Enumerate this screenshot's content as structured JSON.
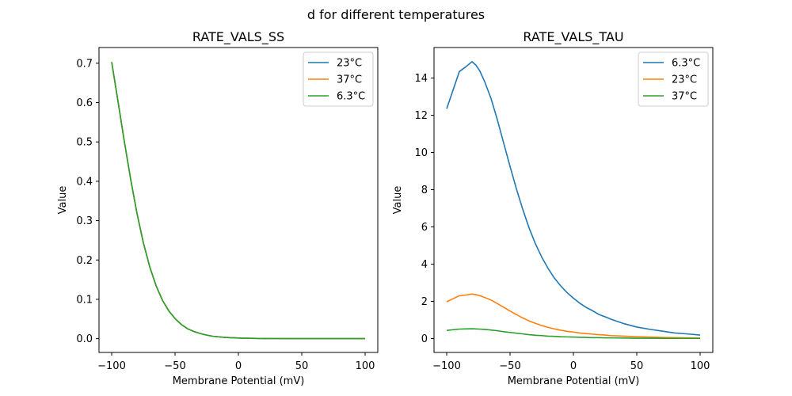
{
  "figure": {
    "suptitle": "d for different temperatures"
  },
  "chart_data": [
    {
      "type": "line",
      "title": "RATE_VALS_SS",
      "xlabel": "Membrane Potential (mV)",
      "ylabel": "Value",
      "xlim": [
        -110,
        110
      ],
      "ylim": [
        -0.035,
        0.74
      ],
      "xticks": [
        -100,
        -50,
        0,
        50,
        100
      ],
      "xtick_labels": [
        "−100",
        "−50",
        "0",
        "50",
        "100"
      ],
      "yticks": [
        0.0,
        0.1,
        0.2,
        0.3,
        0.4,
        0.5,
        0.6,
        0.7
      ],
      "ytick_labels": [
        "0.0",
        "0.1",
        "0.2",
        "0.3",
        "0.4",
        "0.5",
        "0.6",
        "0.7"
      ],
      "grid": false,
      "legend_position": "top-right",
      "x": [
        -100,
        -95,
        -90,
        -85,
        -80,
        -75,
        -70,
        -65,
        -60,
        -55,
        -50,
        -45,
        -40,
        -35,
        -30,
        -25,
        -20,
        -15,
        -10,
        -5,
        0,
        5,
        10,
        15,
        20,
        25,
        30,
        40,
        50,
        60,
        70,
        80,
        90,
        100
      ],
      "series": [
        {
          "name": "23°C",
          "color": "#1f77b4",
          "values": [
            0.703,
            0.603,
            0.501,
            0.405,
            0.318,
            0.244,
            0.183,
            0.135,
            0.098,
            0.071,
            0.051,
            0.036,
            0.025,
            0.018,
            0.013,
            0.009,
            0.006,
            0.0045,
            0.0032,
            0.0023,
            0.0016,
            0.0011,
            0.0008,
            0.0006,
            0.0004,
            0.0003,
            0.0002,
            0.0001,
            0.0001,
            0.0,
            0.0,
            0.0,
            0.0,
            0.0
          ]
        },
        {
          "name": "37°C",
          "color": "#ff7f0e",
          "values": [
            0.703,
            0.603,
            0.501,
            0.405,
            0.318,
            0.244,
            0.183,
            0.135,
            0.098,
            0.071,
            0.051,
            0.036,
            0.025,
            0.018,
            0.013,
            0.009,
            0.006,
            0.0045,
            0.0032,
            0.0023,
            0.0016,
            0.0011,
            0.0008,
            0.0006,
            0.0004,
            0.0003,
            0.0002,
            0.0001,
            0.0001,
            0.0,
            0.0,
            0.0,
            0.0,
            0.0
          ]
        },
        {
          "name": "6.3°C",
          "color": "#2ca02c",
          "values": [
            0.703,
            0.603,
            0.501,
            0.405,
            0.318,
            0.244,
            0.183,
            0.135,
            0.098,
            0.071,
            0.051,
            0.036,
            0.025,
            0.018,
            0.013,
            0.009,
            0.006,
            0.0045,
            0.0032,
            0.0023,
            0.0016,
            0.0011,
            0.0008,
            0.0006,
            0.0004,
            0.0003,
            0.0002,
            0.0001,
            0.0001,
            0.0,
            0.0,
            0.0,
            0.0,
            0.0
          ]
        }
      ]
    },
    {
      "type": "line",
      "title": "RATE_VALS_TAU",
      "xlabel": "Membrane Potential (mV)",
      "ylabel": "Value",
      "xlim": [
        -110,
        110
      ],
      "ylim": [
        -0.745,
        15.64
      ],
      "xticks": [
        -100,
        -50,
        0,
        50,
        100
      ],
      "xtick_labels": [
        "−100",
        "−50",
        "0",
        "50",
        "100"
      ],
      "yticks": [
        0,
        2,
        4,
        6,
        8,
        10,
        12,
        14
      ],
      "ytick_labels": [
        "0",
        "2",
        "4",
        "6",
        "8",
        "10",
        "12",
        "14"
      ],
      "grid": false,
      "legend_position": "top-right",
      "x": [
        -100,
        -90,
        -85,
        -80,
        -77,
        -74,
        -70,
        -65,
        -60,
        -55,
        -50,
        -45,
        -40,
        -35,
        -30,
        -25,
        -20,
        -15,
        -10,
        -5,
        0,
        5,
        10,
        15,
        20,
        25,
        30,
        40,
        50,
        60,
        70,
        80,
        90,
        100
      ],
      "series": [
        {
          "name": "6.3°C",
          "color": "#1f77b4",
          "values": [
            12.35,
            14.35,
            14.6,
            14.88,
            14.7,
            14.4,
            13.8,
            12.9,
            11.75,
            10.5,
            9.25,
            8.05,
            6.95,
            5.95,
            5.1,
            4.38,
            3.77,
            3.25,
            2.83,
            2.47,
            2.17,
            1.9,
            1.68,
            1.5,
            1.3,
            1.17,
            1.03,
            0.8,
            0.62,
            0.5,
            0.4,
            0.3,
            0.25,
            0.19
          ]
        },
        {
          "name": "23°C",
          "color": "#ff7f0e",
          "values": [
            1.98,
            2.3,
            2.34,
            2.39,
            2.36,
            2.31,
            2.21,
            2.07,
            1.88,
            1.68,
            1.48,
            1.29,
            1.11,
            0.95,
            0.82,
            0.7,
            0.6,
            0.52,
            0.45,
            0.39,
            0.35,
            0.3,
            0.27,
            0.24,
            0.21,
            0.19,
            0.16,
            0.13,
            0.1,
            0.08,
            0.06,
            0.05,
            0.04,
            0.03
          ]
        },
        {
          "name": "37°C",
          "color": "#2ca02c",
          "values": [
            0.44,
            0.51,
            0.52,
            0.53,
            0.52,
            0.51,
            0.49,
            0.46,
            0.42,
            0.37,
            0.33,
            0.29,
            0.25,
            0.21,
            0.18,
            0.16,
            0.13,
            0.12,
            0.1,
            0.09,
            0.08,
            0.07,
            0.06,
            0.05,
            0.05,
            0.04,
            0.04,
            0.03,
            0.02,
            0.02,
            0.01,
            0.01,
            0.01,
            0.01
          ]
        }
      ]
    }
  ]
}
